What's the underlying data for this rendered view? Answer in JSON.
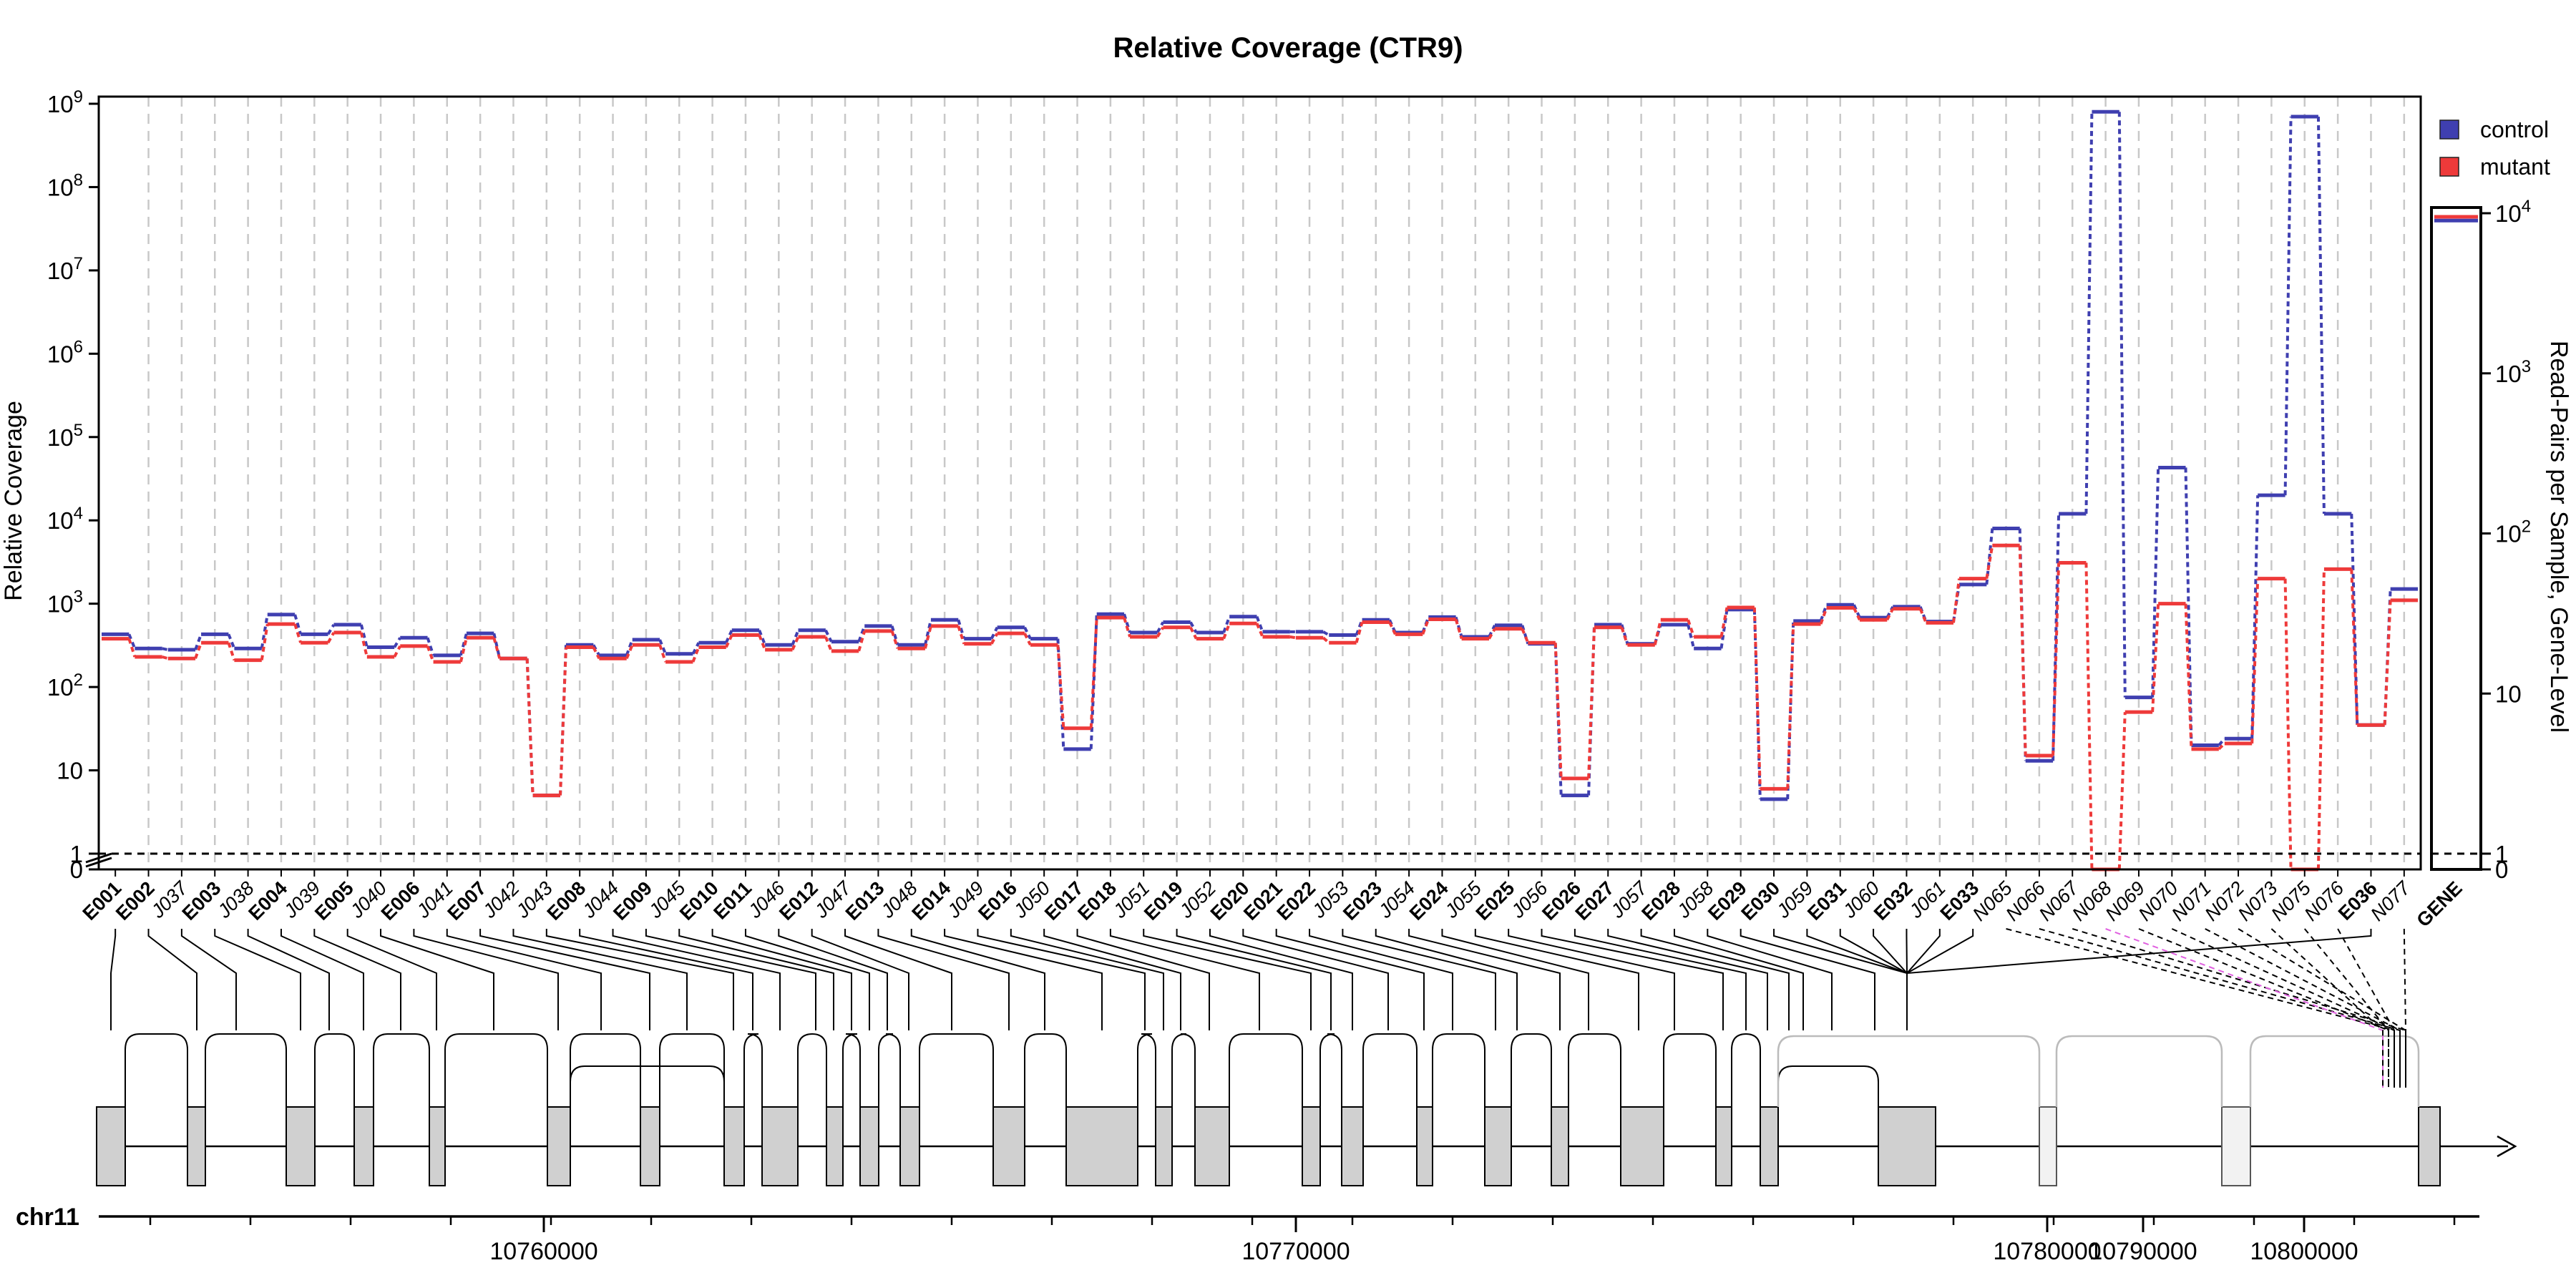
{
  "chart_data": {
    "type": "line",
    "title": "Relative Coverage (CTR9)",
    "ylabel": "Relative Coverage",
    "y2label": "Read-Pairs per Sample, Gene-Level",
    "yscale": "log",
    "ylim": [
      1,
      1000000000
    ],
    "y_ticks": [
      "0",
      "1",
      "10",
      "10^2",
      "10^3",
      "10^4",
      "10^5",
      "10^6",
      "10^7",
      "10^8",
      "10^9"
    ],
    "y2_ticks": [
      "0",
      "1",
      "10",
      "10^2",
      "10^3",
      "10^4"
    ],
    "legend": {
      "position": "top-right",
      "entries": [
        {
          "name": "control",
          "color": "#3f3fb0"
        },
        {
          "name": "mutant",
          "color": "#ee3a3a"
        }
      ]
    },
    "features": [
      {
        "id": "E001",
        "kind": "exon"
      },
      {
        "id": "E002",
        "kind": "exon"
      },
      {
        "id": "J037",
        "kind": "junction"
      },
      {
        "id": "E003",
        "kind": "exon"
      },
      {
        "id": "J038",
        "kind": "junction"
      },
      {
        "id": "E004",
        "kind": "exon"
      },
      {
        "id": "J039",
        "kind": "junction"
      },
      {
        "id": "E005",
        "kind": "exon"
      },
      {
        "id": "J040",
        "kind": "junction"
      },
      {
        "id": "E006",
        "kind": "exon"
      },
      {
        "id": "J041",
        "kind": "junction"
      },
      {
        "id": "E007",
        "kind": "exon"
      },
      {
        "id": "J042",
        "kind": "junction"
      },
      {
        "id": "J043",
        "kind": "junction"
      },
      {
        "id": "E008",
        "kind": "exon"
      },
      {
        "id": "J044",
        "kind": "junction"
      },
      {
        "id": "E009",
        "kind": "exon"
      },
      {
        "id": "J045",
        "kind": "junction"
      },
      {
        "id": "E010",
        "kind": "exon"
      },
      {
        "id": "E011",
        "kind": "exon"
      },
      {
        "id": "J046",
        "kind": "junction"
      },
      {
        "id": "E012",
        "kind": "exon"
      },
      {
        "id": "J047",
        "kind": "junction"
      },
      {
        "id": "E013",
        "kind": "exon"
      },
      {
        "id": "J048",
        "kind": "junction"
      },
      {
        "id": "E014",
        "kind": "exon"
      },
      {
        "id": "J049",
        "kind": "junction"
      },
      {
        "id": "E016",
        "kind": "exon"
      },
      {
        "id": "J050",
        "kind": "junction"
      },
      {
        "id": "E017",
        "kind": "exon"
      },
      {
        "id": "E018",
        "kind": "exon"
      },
      {
        "id": "J051",
        "kind": "junction"
      },
      {
        "id": "E019",
        "kind": "exon"
      },
      {
        "id": "J052",
        "kind": "junction"
      },
      {
        "id": "E020",
        "kind": "exon"
      },
      {
        "id": "E021",
        "kind": "exon"
      },
      {
        "id": "E022",
        "kind": "exon"
      },
      {
        "id": "J053",
        "kind": "junction"
      },
      {
        "id": "E023",
        "kind": "exon"
      },
      {
        "id": "J054",
        "kind": "junction"
      },
      {
        "id": "E024",
        "kind": "exon"
      },
      {
        "id": "J055",
        "kind": "junction"
      },
      {
        "id": "E025",
        "kind": "exon"
      },
      {
        "id": "J056",
        "kind": "junction"
      },
      {
        "id": "E026",
        "kind": "exon"
      },
      {
        "id": "E027",
        "kind": "exon"
      },
      {
        "id": "J057",
        "kind": "junction"
      },
      {
        "id": "E028",
        "kind": "exon"
      },
      {
        "id": "J058",
        "kind": "junction"
      },
      {
        "id": "E029",
        "kind": "exon"
      },
      {
        "id": "E030",
        "kind": "exon"
      },
      {
        "id": "J059",
        "kind": "junction"
      },
      {
        "id": "E031",
        "kind": "exon"
      },
      {
        "id": "J060",
        "kind": "junction"
      },
      {
        "id": "E032",
        "kind": "exon"
      },
      {
        "id": "J061",
        "kind": "junction"
      },
      {
        "id": "E033",
        "kind": "exon"
      },
      {
        "id": "N065",
        "kind": "novel"
      },
      {
        "id": "N066",
        "kind": "novel"
      },
      {
        "id": "N067",
        "kind": "novel"
      },
      {
        "id": "N068",
        "kind": "novel"
      },
      {
        "id": "N069",
        "kind": "novel"
      },
      {
        "id": "N070",
        "kind": "novel"
      },
      {
        "id": "N071",
        "kind": "novel"
      },
      {
        "id": "N072",
        "kind": "novel"
      },
      {
        "id": "N073",
        "kind": "novel"
      },
      {
        "id": "N075",
        "kind": "novel"
      },
      {
        "id": "N076",
        "kind": "novel"
      },
      {
        "id": "E036",
        "kind": "exon"
      },
      {
        "id": "N077",
        "kind": "novel"
      }
    ],
    "series": [
      {
        "name": "control",
        "color": "#3f3fb0",
        "values": [
          430,
          290,
          280,
          430,
          290,
          740,
          430,
          560,
          300,
          390,
          240,
          440,
          220,
          5,
          320,
          240,
          370,
          250,
          340,
          480,
          320,
          480,
          350,
          540,
          320,
          640,
          380,
          520,
          380,
          18,
          750,
          450,
          600,
          450,
          700,
          460,
          460,
          420,
          640,
          450,
          690,
          400,
          550,
          330,
          5,
          560,
          330,
          560,
          290,
          850,
          4.5,
          620,
          970,
          680,
          920,
          610,
          1700,
          8000,
          13,
          12000,
          800000000,
          75,
          43000,
          20,
          24,
          20000,
          700000000,
          12000,
          35,
          1500
        ]
      },
      {
        "name": "mutant",
        "color": "#ee3a3a",
        "values": [
          380,
          230,
          220,
          340,
          210,
          570,
          340,
          450,
          230,
          310,
          200,
          390,
          220,
          5,
          300,
          220,
          320,
          200,
          300,
          420,
          280,
          400,
          270,
          470,
          290,
          540,
          330,
          440,
          320,
          32,
          680,
          400,
          520,
          380,
          580,
          400,
          390,
          340,
          600,
          430,
          650,
          380,
          500,
          340,
          8,
          520,
          320,
          640,
          400,
          900,
          6,
          570,
          890,
          640,
          870,
          590,
          2000,
          5000,
          15,
          3100,
          0,
          50,
          1000,
          18,
          21,
          2000,
          0,
          2600,
          35,
          1100
        ]
      }
    ],
    "gene_level": {
      "label": "GENE",
      "control": 9000,
      "mutant": 9500
    },
    "genome": {
      "chromosome": "chr11",
      "coord_ticks": [
        "10760000",
        "10770000",
        "10780000",
        "10790000",
        "10800000"
      ]
    }
  }
}
